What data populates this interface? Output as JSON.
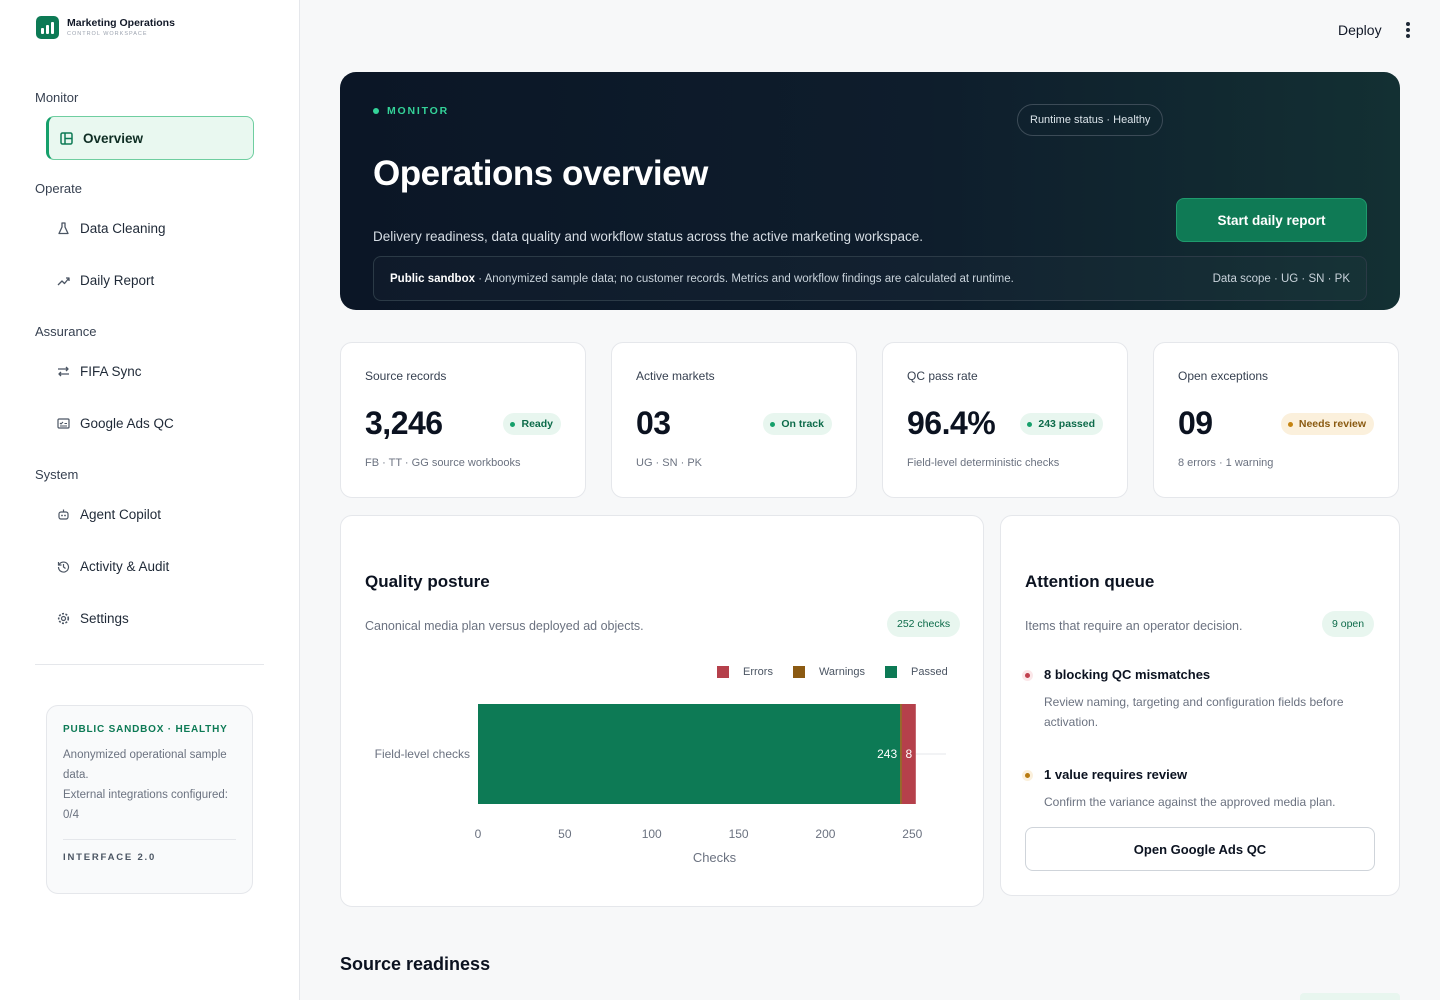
{
  "brand": {
    "title": "Marketing Operations",
    "subtitle": "Control workspace"
  },
  "nav": {
    "sections": [
      {
        "label": "Monitor"
      },
      {
        "label": "Operate"
      },
      {
        "label": "Assurance"
      },
      {
        "label": "System"
      }
    ],
    "items": [
      {
        "label": "Overview",
        "icon": "layout-icon",
        "active": true
      },
      {
        "label": "Data Cleaning",
        "icon": "flask-icon"
      },
      {
        "label": "Daily Report",
        "icon": "trend-icon"
      },
      {
        "label": "FIFA Sync",
        "icon": "sync-arrows-icon"
      },
      {
        "label": "Google Ads QC",
        "icon": "checklist-icon"
      },
      {
        "label": "Agent Copilot",
        "icon": "robot-icon"
      },
      {
        "label": "Activity & Audit",
        "icon": "history-icon"
      },
      {
        "label": "Settings",
        "icon": "gear-icon"
      }
    ]
  },
  "sandbox": {
    "title": "PUBLIC SANDBOX · HEALTHY",
    "line1": "Anonymized operational sample data.",
    "line2": "External integrations configured: 0/4",
    "version": "INTERFACE 2.0"
  },
  "topbar": {
    "deploy": "Deploy",
    "more_icon": "vertical-dots-icon"
  },
  "hero": {
    "eyebrow": "MONITOR",
    "status": "Runtime status · Healthy",
    "title": "Operations overview",
    "description": "Delivery readiness, data quality and workflow status across the active marketing workspace.",
    "cta": "Start daily report",
    "note_strong": "Public sandbox",
    "note_text": " · Anonymized sample data; no customer records. Metrics and workflow findings are calculated at runtime.",
    "scope": "Data scope · UG · SN · PK"
  },
  "stats": [
    {
      "label": "Source records",
      "value": "3,246",
      "badge": "Ready",
      "tone": "green",
      "sub": "FB · TT · GG source workbooks"
    },
    {
      "label": "Active markets",
      "value": "03",
      "badge": "On track",
      "tone": "green",
      "sub": "UG · SN · PK"
    },
    {
      "label": "QC pass rate",
      "value": "96.4%",
      "badge": "243 passed",
      "tone": "green",
      "sub": "Field-level deterministic checks"
    },
    {
      "label": "Open exceptions",
      "value": "09",
      "badge": "Needs review",
      "tone": "amber",
      "sub": "8 errors · 1 warning"
    }
  ],
  "quality": {
    "title": "Quality posture",
    "subtitle": "Canonical media plan versus deployed ad objects.",
    "chip": "252 checks"
  },
  "chart_data": {
    "type": "bar",
    "orientation": "horizontal",
    "stacked": true,
    "categories": [
      "Field-level checks"
    ],
    "series": [
      {
        "name": "Passed",
        "values": [
          243
        ],
        "color": "#0d7a55"
      },
      {
        "name": "Warnings",
        "values": [
          1
        ],
        "color": "#8b5a12"
      },
      {
        "name": "Errors",
        "values": [
          8
        ],
        "color": "#b5404b"
      }
    ],
    "legend_order": [
      "Errors",
      "Warnings",
      "Passed"
    ],
    "legend_position": "top-right",
    "data_labels": [
      "243",
      "8"
    ],
    "xlabel": "Checks",
    "ylabel": "",
    "xlim": [
      0,
      255
    ],
    "xticks": [
      "0",
      "50",
      "100",
      "150",
      "200",
      "250"
    ],
    "grid": false
  },
  "attention": {
    "title": "Attention queue",
    "subtitle": "Items that require an operator decision.",
    "chip": "9 open",
    "items": [
      {
        "title": "8 blocking QC mismatches",
        "desc": "Review naming, targeting and configuration fields before activation.",
        "color": "#c0404e"
      },
      {
        "title": "1 value requires review",
        "desc": "Confirm the variance against the approved media plan.",
        "color": "#b87a10"
      }
    ],
    "button": "Open Google Ads QC"
  },
  "next_section": {
    "title": "Source readiness"
  }
}
